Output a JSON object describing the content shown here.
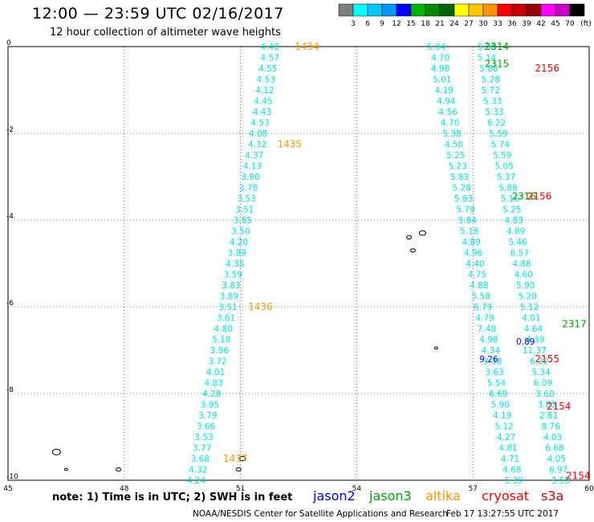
{
  "title": "12:00 — 23:59 UTC 02/16/2017",
  "subtitle": "12 hour collection of altimeter wave heights",
  "note": "note:  1) Time is in UTC;  2) SWH is in feet",
  "footer": "NOAA/NESDIS Center for Satellite Applications and Research",
  "timestamp": "Feb 17 13:27:55 UTC 2017",
  "colorbar": {
    "unit": "(ft)",
    "labels": [
      "3",
      "6",
      "9",
      "12",
      "15",
      "18",
      "21",
      "24",
      "27",
      "30",
      "33",
      "36",
      "39",
      "42",
      "45",
      "70"
    ],
    "colors": [
      "#7f7f7f",
      "#00ffff",
      "#00c8ff",
      "#0096ff",
      "#0000ff",
      "#00b400",
      "#008c00",
      "#006400",
      "#ffff00",
      "#ffc800",
      "#ff9600",
      "#ff0000",
      "#c80000",
      "#960000",
      "#ff00ff",
      "#c800c8",
      "#000000"
    ]
  },
  "satellites": [
    {
      "name": "jason2",
      "color": "#0000ff"
    },
    {
      "name": "jason3",
      "color": "#00a000"
    },
    {
      "name": "altika",
      "color": "#ff9600"
    },
    {
      "name": "cryosat",
      "color": "#ff0000"
    },
    {
      "name": "s3a",
      "color": "#c80000"
    }
  ],
  "chart_data": {
    "type": "scatter",
    "x_range": [
      45,
      60
    ],
    "y_range": [
      -10,
      0
    ],
    "x_ticks": [
      "45",
      "48",
      "51",
      "54",
      "57",
      "60"
    ],
    "y_ticks": [
      "0",
      "-2",
      "-4",
      "-6",
      "-8",
      "-10"
    ],
    "grid": true,
    "series": [
      {
        "name": "altika",
        "color": "#00e0e0",
        "points": [
          [
            52.0,
            0.0,
            "4.40"
          ],
          [
            52.0,
            -0.25,
            "4.57"
          ],
          [
            51.95,
            -0.5,
            "4.55"
          ],
          [
            51.9,
            -0.75,
            "4.53"
          ],
          [
            51.87,
            -1.0,
            "4.12"
          ],
          [
            51.83,
            -1.25,
            "4.45"
          ],
          [
            51.8,
            -1.5,
            "4.43"
          ],
          [
            51.75,
            -1.75,
            "4.53"
          ],
          [
            51.7,
            -2.0,
            "4.08"
          ],
          [
            51.68,
            -2.25,
            "4.32"
          ],
          [
            51.6,
            -2.5,
            "4.37"
          ],
          [
            51.55,
            -2.75,
            "4.13"
          ],
          [
            51.5,
            -3.0,
            "3.90"
          ],
          [
            51.45,
            -3.25,
            "3.78"
          ],
          [
            51.4,
            -3.5,
            "3.53"
          ],
          [
            51.35,
            -3.75,
            "3.51"
          ],
          [
            51.3,
            -4.0,
            "3.85"
          ],
          [
            51.25,
            -4.25,
            "3.50"
          ],
          [
            51.2,
            -4.5,
            "4.20"
          ],
          [
            51.15,
            -4.75,
            "3.89"
          ],
          [
            51.1,
            -5.0,
            "4.35"
          ],
          [
            51.05,
            -5.25,
            "3.59"
          ],
          [
            51.0,
            -5.5,
            "3.83"
          ],
          [
            50.95,
            -5.75,
            "3.89"
          ],
          [
            50.92,
            -6.0,
            "3.51"
          ],
          [
            50.87,
            -6.25,
            "3.61"
          ],
          [
            50.8,
            -6.5,
            "4.80"
          ],
          [
            50.75,
            -6.75,
            "5.18"
          ],
          [
            50.7,
            -7.0,
            "3.96"
          ],
          [
            50.65,
            -7.25,
            "3.72"
          ],
          [
            50.6,
            -7.5,
            "4.01"
          ],
          [
            50.55,
            -7.75,
            "4.83"
          ],
          [
            50.5,
            -8.0,
            "4.28"
          ],
          [
            50.45,
            -8.25,
            "3.95"
          ],
          [
            50.4,
            -8.5,
            "3.79"
          ],
          [
            50.35,
            -8.75,
            "3.66"
          ],
          [
            50.3,
            -9.0,
            "3.53"
          ],
          [
            50.25,
            -9.25,
            "3.77"
          ],
          [
            50.2,
            -9.5,
            "3.68"
          ],
          [
            50.15,
            -9.75,
            "4.32"
          ],
          [
            50.1,
            -10.0,
            "4.24"
          ]
        ],
        "time_labels": [
          [
            52.4,
            0.0,
            "1434"
          ],
          [
            51.95,
            -2.25,
            "1435"
          ],
          [
            51.2,
            -6.0,
            "1436"
          ],
          [
            50.55,
            -9.5,
            "1437"
          ]
        ]
      },
      {
        "name": "jason3",
        "color": "#00e0e0",
        "points": [
          [
            56.3,
            0.0,
            "5.04"
          ],
          [
            56.4,
            -0.25,
            "4.70"
          ],
          [
            56.4,
            -0.5,
            "4.98"
          ],
          [
            56.45,
            -0.75,
            "5.01"
          ],
          [
            56.5,
            -1.0,
            "4.19"
          ],
          [
            56.55,
            -1.25,
            "4.94"
          ],
          [
            56.6,
            -1.5,
            "4.56"
          ],
          [
            56.65,
            -1.75,
            "4.70"
          ],
          [
            56.7,
            -2.0,
            "5.38"
          ],
          [
            56.75,
            -2.25,
            "4.50"
          ],
          [
            56.8,
            -2.5,
            "5.25"
          ],
          [
            56.85,
            -2.75,
            "5.23"
          ],
          [
            56.9,
            -3.0,
            "5.83"
          ],
          [
            56.95,
            -3.25,
            "5.28"
          ],
          [
            57.0,
            -3.5,
            "5.83"
          ],
          [
            57.05,
            -3.75,
            "5.79"
          ],
          [
            57.1,
            -4.0,
            "5.84"
          ],
          [
            57.15,
            -4.25,
            "5.18"
          ],
          [
            57.2,
            -4.5,
            "4.89"
          ],
          [
            57.25,
            -4.75,
            "4.96"
          ],
          [
            57.3,
            -5.0,
            "4.40"
          ],
          [
            57.35,
            -5.25,
            "4.75"
          ],
          [
            57.4,
            -5.5,
            "4.88"
          ],
          [
            57.45,
            -5.75,
            "5.58"
          ],
          [
            57.5,
            -6.0,
            "6.79"
          ],
          [
            57.55,
            -6.25,
            "4.79"
          ],
          [
            57.6,
            -6.5,
            "7.48"
          ],
          [
            57.65,
            -6.75,
            "4.98"
          ],
          [
            57.7,
            -7.0,
            "4.34"
          ],
          [
            57.75,
            -7.25,
            "3.38"
          ],
          [
            57.8,
            -7.5,
            "3.63"
          ],
          [
            57.85,
            -7.75,
            "5.54"
          ],
          [
            57.9,
            -8.0,
            "6.69"
          ],
          [
            57.95,
            -8.25,
            "5.90"
          ],
          [
            58.0,
            -8.5,
            "4.19"
          ],
          [
            58.05,
            -8.75,
            "5.12"
          ],
          [
            58.1,
            -9.0,
            "4.27"
          ],
          [
            58.15,
            -9.25,
            "4.81"
          ],
          [
            58.2,
            -9.5,
            "4.71"
          ],
          [
            58.25,
            -9.75,
            "4.68"
          ],
          [
            58.3,
            -10.0,
            "5.39"
          ]
        ],
        "time_labels": [
          [
            57.3,
            0.0,
            "2314"
          ],
          [
            57.3,
            -0.4,
            "2315"
          ],
          [
            58.0,
            -3.45,
            "2316"
          ],
          [
            59.3,
            -6.4,
            "2317"
          ]
        ]
      },
      {
        "name": "cryosat",
        "color": "#00e0e0",
        "points": [
          [
            57.6,
            0.0,
            "5.50"
          ],
          [
            57.6,
            -0.25,
            "5.14"
          ],
          [
            57.65,
            -0.5,
            "5.88"
          ],
          [
            57.7,
            -0.75,
            "5.28"
          ],
          [
            57.7,
            -1.0,
            "5.72"
          ],
          [
            57.75,
            -1.25,
            "5.33"
          ],
          [
            57.8,
            -1.5,
            "5.33"
          ],
          [
            57.85,
            -1.75,
            "6.22"
          ],
          [
            57.9,
            -2.0,
            "5.59"
          ],
          [
            57.95,
            -2.25,
            "5.74"
          ],
          [
            58.0,
            -2.5,
            "5.59"
          ],
          [
            58.05,
            -2.75,
            "5.05"
          ],
          [
            58.1,
            -3.0,
            "5.37"
          ],
          [
            58.15,
            -3.25,
            "5.88"
          ],
          [
            58.2,
            -3.5,
            "5.16"
          ],
          [
            58.25,
            -3.75,
            "5.25"
          ],
          [
            58.3,
            -4.0,
            "4.83"
          ],
          [
            58.35,
            -4.25,
            "4.89"
          ],
          [
            58.4,
            -4.5,
            "5.46"
          ],
          [
            58.45,
            -4.75,
            "6.57"
          ],
          [
            58.5,
            -5.0,
            "4.88"
          ],
          [
            58.55,
            -5.25,
            "4.60"
          ],
          [
            58.6,
            -5.5,
            "5.90"
          ],
          [
            58.65,
            -5.75,
            "5.20"
          ],
          [
            58.7,
            -6.0,
            "5.12"
          ],
          [
            58.75,
            -6.25,
            "4.01"
          ],
          [
            58.8,
            -6.5,
            "4.64"
          ],
          [
            58.85,
            -6.75,
            "4.39"
          ],
          [
            58.9,
            -7.0,
            "11.37"
          ],
          [
            58.95,
            -7.25,
            "6.32"
          ],
          [
            59.0,
            -7.5,
            "5.34"
          ],
          [
            59.05,
            -7.75,
            "6.09"
          ],
          [
            59.1,
            -8.0,
            "3.60"
          ],
          [
            59.15,
            -8.25,
            "3.85"
          ],
          [
            59.2,
            -8.5,
            "2.81"
          ],
          [
            59.25,
            -8.75,
            "8.76"
          ],
          [
            59.3,
            -9.0,
            "4.03"
          ],
          [
            59.35,
            -9.25,
            "6.68"
          ],
          [
            59.4,
            -9.5,
            "4.05"
          ],
          [
            59.45,
            -9.75,
            "6.97"
          ],
          [
            59.5,
            -10.0,
            "3.55"
          ]
        ],
        "time_labels": [
          [
            58.6,
            -0.5,
            "2156"
          ],
          [
            58.4,
            -3.45,
            "2156"
          ],
          [
            58.6,
            -7.2,
            "2155"
          ],
          [
            58.9,
            -8.3,
            "2154"
          ],
          [
            59.4,
            -9.9,
            "2154"
          ]
        ]
      },
      {
        "name": "jason2",
        "color": "#0000ff",
        "points": [
          [
            58.6,
            -6.8,
            "0.89"
          ],
          [
            57.65,
            -7.2,
            "9.26"
          ]
        ],
        "time_labels": []
      }
    ]
  }
}
